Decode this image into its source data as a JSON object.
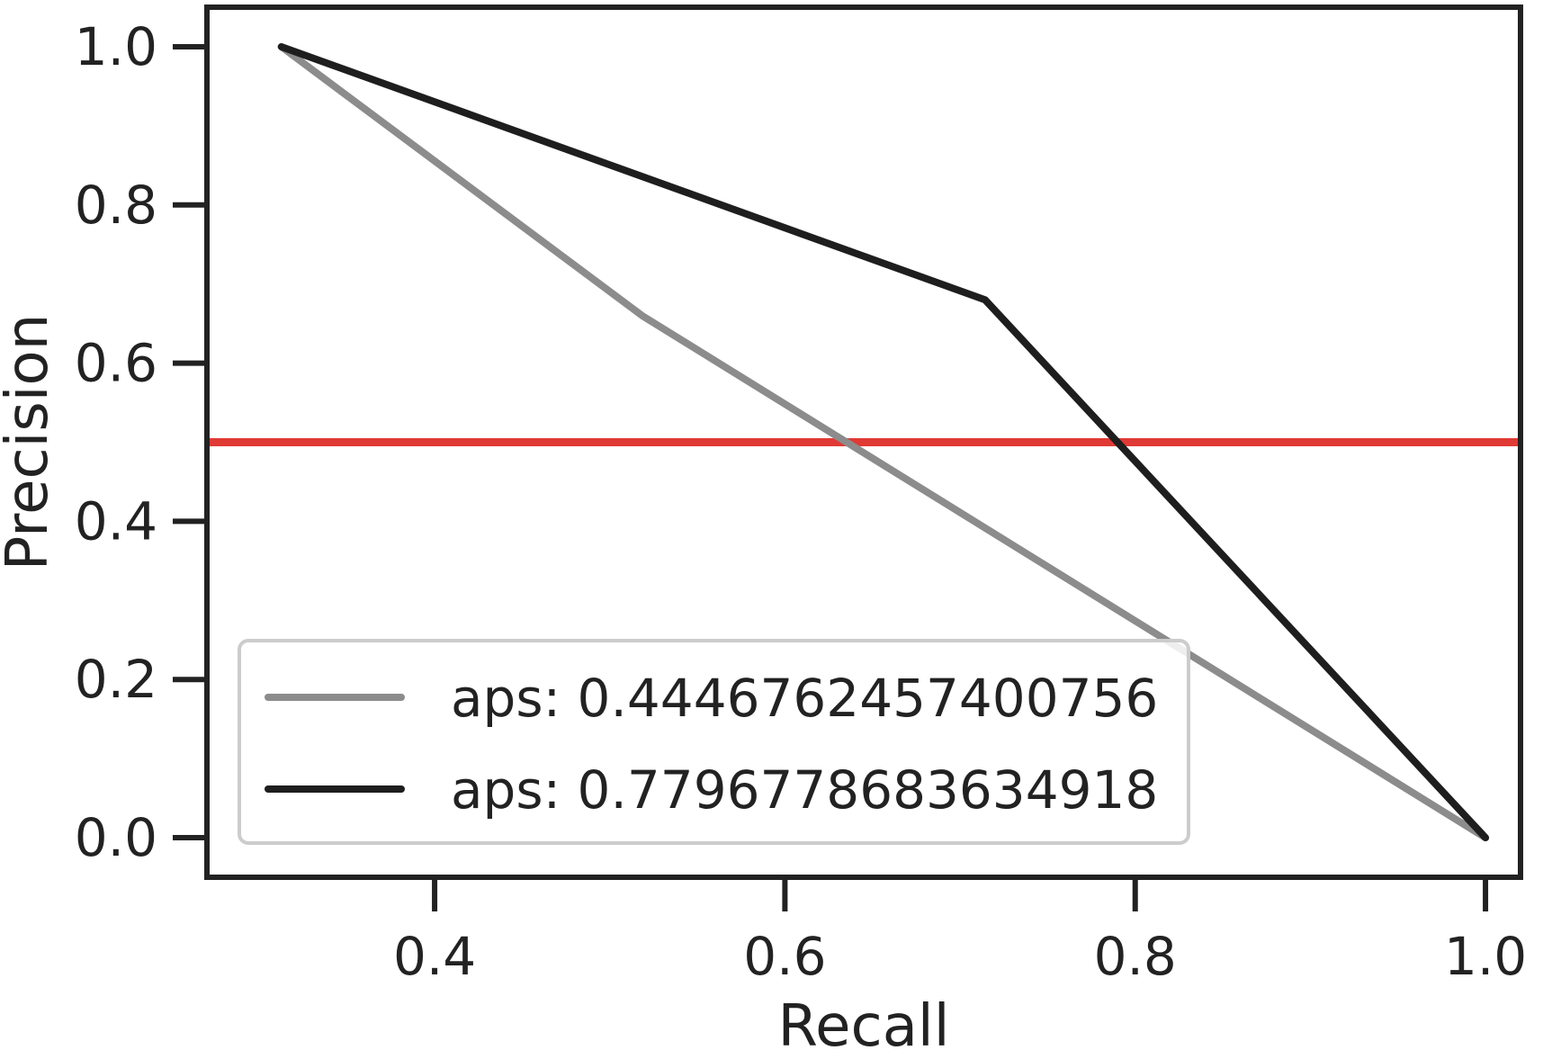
{
  "chart_data": {
    "type": "line",
    "title": "",
    "xlabel": "Recall",
    "ylabel": "Precision",
    "xlim": [
      0.27,
      1.02
    ],
    "ylim": [
      -0.05,
      1.05
    ],
    "x_ticks": [
      0.4,
      0.6,
      0.8,
      1.0
    ],
    "x_tick_labels": [
      "0.4",
      "0.6",
      "0.8",
      "1.0"
    ],
    "y_ticks": [
      0.0,
      0.2,
      0.4,
      0.6,
      0.8,
      1.0
    ],
    "y_tick_labels": [
      "0.0",
      "0.2",
      "0.4",
      "0.6",
      "0.8",
      "1.0"
    ],
    "grid": false,
    "legend_position": "lower-left",
    "series": [
      {
        "name": "aps: 0.4446762457400756",
        "color": "#8c8c8c",
        "x": [
          0.3125,
          0.5185,
          1.0
        ],
        "y": [
          1.0,
          0.66,
          0.0
        ]
      },
      {
        "name": "aps: 0.7796778683634918",
        "color": "#1e1e1e",
        "x": [
          0.3125,
          0.7143,
          1.0
        ],
        "y": [
          1.0,
          0.68,
          0.0
        ]
      }
    ],
    "reference_line": {
      "y": 0.5,
      "color": "#e03a35"
    }
  }
}
